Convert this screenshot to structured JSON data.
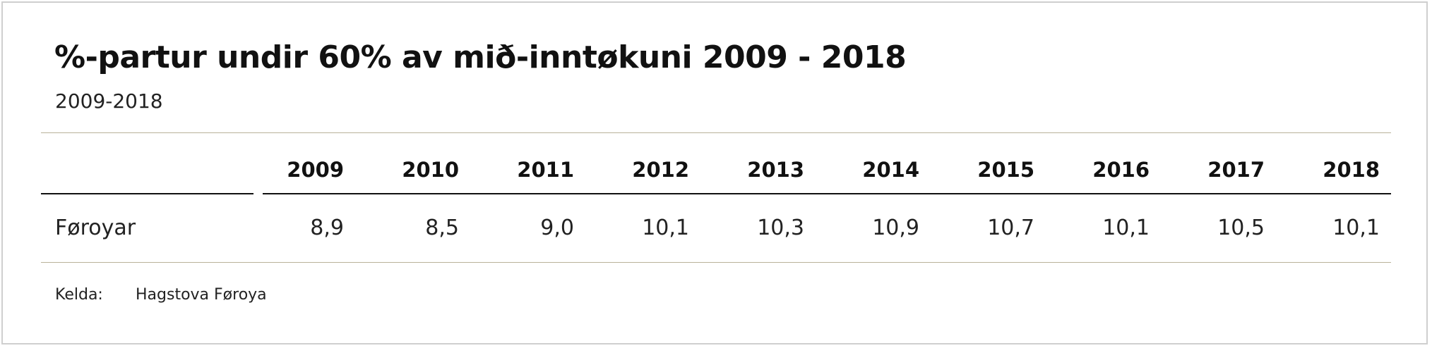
{
  "title": "%-partur undir 60% av mið-inntøkuni 2009 - 2018",
  "subtitle": "2009-2018",
  "table": {
    "columns": [
      "2009",
      "2010",
      "2011",
      "2012",
      "2013",
      "2014",
      "2015",
      "2016",
      "2017",
      "2018"
    ],
    "rows": [
      {
        "label": "Føroyar",
        "values": [
          "8,9",
          "8,5",
          "9,0",
          "10,1",
          "10,3",
          "10,9",
          "10,7",
          "10,1",
          "10,5",
          "10,1"
        ]
      }
    ]
  },
  "source": {
    "label": "Kelda:",
    "value": "Hagstova Føroya"
  },
  "colors": {
    "rule": "#b9b29a",
    "header_rule": "#111111",
    "frame": "#cfcfcf"
  }
}
